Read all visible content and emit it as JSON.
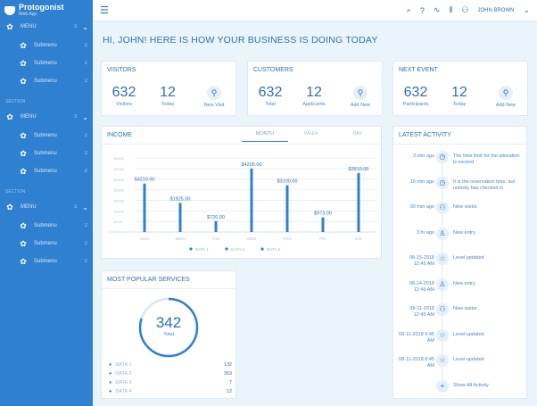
{
  "app": {
    "name": "Protogonist",
    "subtitle": "Web App"
  },
  "sidebar": {
    "groups": [
      {
        "section": "",
        "menu": "MENU",
        "count": "3",
        "subs": [
          {
            "label": "Submenu",
            "count": "2"
          },
          {
            "label": "Submenu",
            "count": "2"
          },
          {
            "label": "Submenu",
            "count": "2"
          }
        ]
      },
      {
        "section": "SECTION",
        "menu": "MENU",
        "count": "3",
        "subs": [
          {
            "label": "Submenu",
            "count": "2"
          },
          {
            "label": "Submenu",
            "count": "2"
          },
          {
            "label": "Submenu",
            "count": "2"
          }
        ]
      },
      {
        "section": "SECTION",
        "menu": "MENU",
        "count": "3",
        "subs": [
          {
            "label": "Submenu",
            "count": "2"
          },
          {
            "label": "Submenu",
            "count": "2"
          },
          {
            "label": "Submenu",
            "count": "2"
          }
        ]
      }
    ]
  },
  "topbar": {
    "user": "JOHN BROWN"
  },
  "heading": "HI, JOHN! HERE IS HOW YOUR BUSINESS IS DOING TODAY",
  "cards": [
    {
      "title": "VISITORS",
      "a": "632",
      "al": "Visitors",
      "b": "12",
      "bl": "Today",
      "action": "New Visit"
    },
    {
      "title": "CUSTOMERS",
      "a": "632",
      "al": "Total",
      "b": "12",
      "bl": "Applicants",
      "action": "Add New"
    },
    {
      "title": "NEXT EVENT",
      "a": "632",
      "al": "Participants",
      "b": "12",
      "bl": "Today",
      "action": "Add New"
    }
  ],
  "income": {
    "title": "INCOME",
    "tabs": [
      "MONTH",
      "WEEK",
      "DAY"
    ]
  },
  "chart_data": {
    "type": "bar",
    "title": "INCOME",
    "categories": [
      "SUN",
      "MON",
      "TUE",
      "WED",
      "THU",
      "FRI",
      "SAT"
    ],
    "values": [
      3210,
      1925,
      720,
      4205,
      3100,
      973,
      3910
    ],
    "labels": [
      "$3210.00",
      "$1925.00",
      "$720.00",
      "$4205.00",
      "$3100.00",
      "$973.00",
      "$3910.00"
    ],
    "ylim": [
      0,
      5500
    ],
    "yticks": [
      "$700",
      "$1400",
      "$2100",
      "$2800",
      "$3500",
      "$4200",
      "$4900"
    ],
    "ytick_values": [
      700,
      1400,
      2100,
      2800,
      3500,
      4200,
      4900
    ],
    "legend": [
      "DATA 1",
      "DATA 2",
      "DATA 3"
    ],
    "legend_position": "bottom",
    "grid": true
  },
  "services": {
    "title": "MOST POPULAR SERVICES",
    "total": "342",
    "total_label": "Total",
    "progress": 0.8,
    "items": [
      {
        "label": "DATA 1",
        "value": "132"
      },
      {
        "label": "DATA 2",
        "value": "353"
      },
      {
        "label": "DATA 3",
        "value": "7"
      },
      {
        "label": "DATA 4",
        "value": "12"
      }
    ]
  },
  "activity": {
    "title": "LATEST ACTIVITY",
    "items": [
      {
        "time": "3 min ago",
        "icon": "clock",
        "text": "The time limit for the allocation is exceed"
      },
      {
        "time": "15 min ago",
        "icon": "clock",
        "text": "It is the reservation time, but nobody has checked in"
      },
      {
        "time": "30 min ago",
        "icon": "visitor",
        "text": "New visitor"
      },
      {
        "time": "3 hr ago",
        "icon": "person",
        "text": "New entry"
      },
      {
        "time": "08-15-2018 12:45 AM",
        "icon": "star",
        "text": "Level updated"
      },
      {
        "time": "08-14-2018 12:45 AM",
        "icon": "person",
        "text": "New entry"
      },
      {
        "time": "08-11-2018 12:45 AM",
        "icon": "visitor",
        "text": "New visitor"
      },
      {
        "time": "08-11-2018 9:45 AM",
        "icon": "star",
        "text": "Level updated"
      },
      {
        "time": "08-11-2018 8:45 AM",
        "icon": "star",
        "text": "Level updated"
      }
    ],
    "show_all": "Show All Activity"
  }
}
